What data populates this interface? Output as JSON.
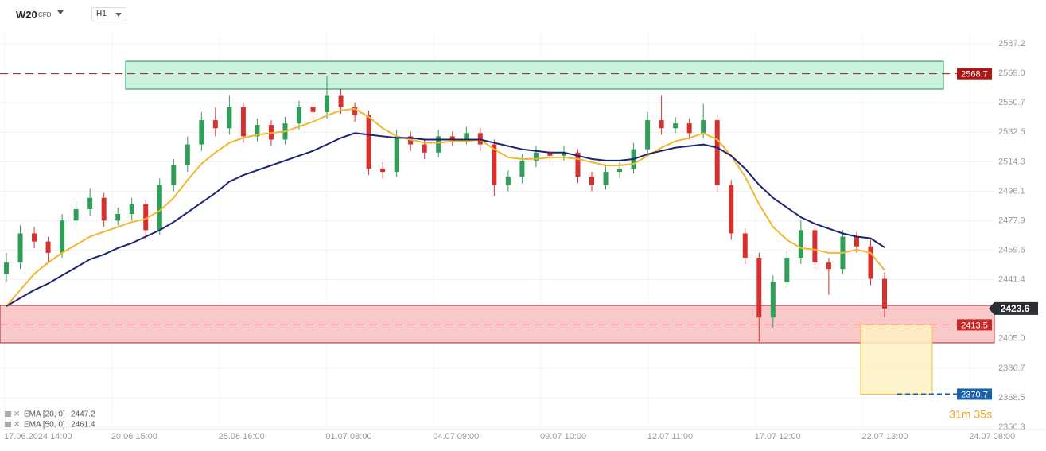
{
  "header": {
    "symbol": "W20",
    "market": "CFD",
    "interval": "H1"
  },
  "chart_data": {
    "type": "candlestick",
    "x_labels": [
      "17.06.2024 14:00",
      "20.06 15:00",
      "25.06 16:00",
      "01.07 08:00",
      "04.07 09:00",
      "09.07 10:00",
      "12.07 11:00",
      "17.07 12:00",
      "22.07 13:00",
      "24.07 08:00"
    ],
    "open": [
      2445,
      2452,
      2470,
      2465,
      2458,
      2478,
      2485,
      2492,
      2478,
      2482,
      2488,
      2472,
      2500,
      2512,
      2525,
      2540,
      2535,
      2548,
      2530,
      2537,
      2528,
      2538,
      2548,
      2545,
      2555,
      2548,
      2543,
      2510,
      2508,
      2530,
      2525,
      2520,
      2530,
      2528,
      2532,
      2525,
      2500,
      2505,
      2515,
      2520,
      2518,
      2520,
      2505,
      2500,
      2508,
      2510,
      2522,
      2540,
      2535,
      2538,
      2532,
      2540,
      2500,
      2470,
      2455,
      2418,
      2440,
      2455,
      2472,
      2452,
      2448,
      2468,
      2462,
      2442
    ],
    "high": [
      2458,
      2475,
      2474,
      2468,
      2482,
      2490,
      2498,
      2495,
      2486,
      2492,
      2491,
      2504,
      2516,
      2530,
      2545,
      2548,
      2555,
      2551,
      2541,
      2540,
      2542,
      2552,
      2551,
      2567,
      2559,
      2551,
      2546,
      2514,
      2534,
      2533,
      2528,
      2534,
      2533,
      2536,
      2535,
      2528,
      2509,
      2519,
      2524,
      2523,
      2524,
      2522,
      2508,
      2512,
      2514,
      2526,
      2545,
      2555,
      2542,
      2541,
      2550,
      2543,
      2503,
      2473,
      2458,
      2444,
      2459,
      2478,
      2475,
      2455,
      2472,
      2471,
      2466,
      2446
    ],
    "low": [
      2440,
      2448,
      2461,
      2452,
      2455,
      2474,
      2481,
      2474,
      2475,
      2478,
      2466,
      2469,
      2496,
      2508,
      2521,
      2530,
      2531,
      2526,
      2527,
      2524,
      2525,
      2534,
      2541,
      2541,
      2544,
      2539,
      2506,
      2504,
      2505,
      2521,
      2516,
      2517,
      2524,
      2525,
      2521,
      2493,
      2496,
      2501,
      2511,
      2514,
      2515,
      2501,
      2496,
      2497,
      2504,
      2507,
      2518,
      2531,
      2532,
      2528,
      2529,
      2496,
      2466,
      2451,
      2403,
      2412,
      2436,
      2451,
      2448,
      2432,
      2445,
      2458,
      2438,
      2418
    ],
    "close": [
      2452,
      2470,
      2465,
      2458,
      2478,
      2485,
      2492,
      2478,
      2482,
      2488,
      2472,
      2500,
      2512,
      2525,
      2540,
      2535,
      2548,
      2530,
      2537,
      2528,
      2538,
      2548,
      2545,
      2555,
      2548,
      2543,
      2510,
      2508,
      2530,
      2525,
      2520,
      2530,
      2528,
      2532,
      2525,
      2500,
      2505,
      2515,
      2520,
      2518,
      2520,
      2505,
      2500,
      2508,
      2510,
      2522,
      2540,
      2535,
      2538,
      2532,
      2540,
      2500,
      2470,
      2455,
      2418,
      2440,
      2455,
      2472,
      2452,
      2448,
      2468,
      2462,
      2442,
      2423.6
    ],
    "up_color": "#2f9e57",
    "down_color": "#d6302f",
    "series": [
      {
        "name": "EMA [20, 0]",
        "color": "#f2b631",
        "values": [
          2425,
          2435,
          2445,
          2452,
          2458,
          2463,
          2468,
          2471,
          2474,
          2477,
          2479,
          2484,
          2492,
          2503,
          2513,
          2520,
          2526,
          2529,
          2531,
          2532,
          2533,
          2536,
          2539,
          2543,
          2546,
          2547,
          2542,
          2535,
          2530,
          2528,
          2526,
          2526,
          2527,
          2527,
          2528,
          2522,
          2517,
          2516,
          2516,
          2517,
          2517,
          2516,
          2514,
          2512,
          2512,
          2513,
          2518,
          2523,
          2527,
          2529,
          2532,
          2528,
          2518,
          2505,
          2488,
          2474,
          2466,
          2461,
          2460,
          2458,
          2458,
          2460,
          2458,
          2447.2
        ]
      },
      {
        "name": "EMA [50, 0]",
        "color": "#1c2473",
        "values": [
          2425,
          2430,
          2435,
          2439,
          2444,
          2449,
          2454,
          2457,
          2461,
          2464,
          2468,
          2472,
          2477,
          2483,
          2489,
          2495,
          2502,
          2506,
          2509,
          2512,
          2515,
          2518,
          2521,
          2525,
          2529,
          2532,
          2531,
          2530,
          2529,
          2529,
          2528,
          2528,
          2528,
          2528,
          2528,
          2526,
          2524,
          2522,
          2521,
          2520,
          2520,
          2518,
          2516,
          2515,
          2515,
          2516,
          2519,
          2521,
          2523,
          2524,
          2525,
          2523,
          2518,
          2510,
          2500,
          2492,
          2486,
          2480,
          2476,
          2473,
          2470,
          2468,
          2467,
          2461.4
        ]
      }
    ],
    "zones": [
      {
        "top": 2576.4,
        "bottom": 2559.2,
        "color": "#c9f2de",
        "border": "#1f8a55"
      },
      {
        "top": 2425.5,
        "bottom": 2402.4,
        "color": "#f9c9c9",
        "border": "#a52a2a"
      }
    ],
    "levels": [
      {
        "value": 2568.7,
        "color": "#b01515"
      },
      {
        "value": 2413.5,
        "color": "#c62828"
      }
    ],
    "target": {
      "value": 2370.7,
      "color": "#1a5fa8"
    },
    "current_price": 2423.6,
    "timer": "31m 35s",
    "ylim": [
      2348.8,
      2594.6
    ],
    "yticks": [
      {
        "value": 2587.2,
        "label": "2587.2"
      },
      {
        "value": 2569.0,
        "label": "2569.0"
      },
      {
        "value": 2550.7,
        "label": "2550.7"
      },
      {
        "value": 2532.5,
        "label": "2532.5"
      },
      {
        "value": 2514.3,
        "label": "2514.3"
      },
      {
        "value": 2496.1,
        "label": "2496.1"
      },
      {
        "value": 2477.9,
        "label": "2477.9"
      },
      {
        "value": 2459.6,
        "label": "2459.6"
      },
      {
        "value": 2441.4,
        "label": "2441.4"
      },
      {
        "value": 2405.0,
        "label": "2405.0"
      },
      {
        "value": 2386.7,
        "label": "2386.7"
      },
      {
        "value": 2368.5,
        "label": "2368.5"
      },
      {
        "value": 2350.3,
        "label": "2350.3"
      }
    ],
    "grid": true
  }
}
